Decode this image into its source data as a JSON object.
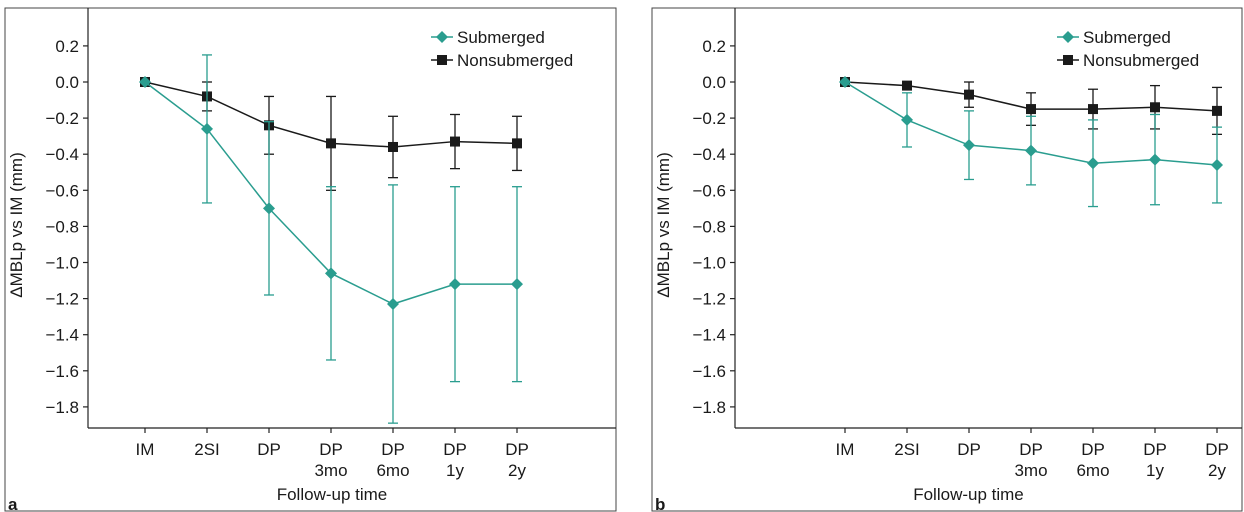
{
  "chart_data": [
    {
      "panel_label": "a",
      "type": "line",
      "xlabel": "Follow-up time",
      "ylabel": "ΔMBLp vs IM (mm)",
      "categories": [
        [
          "IM"
        ],
        [
          "2SI"
        ],
        [
          "DP"
        ],
        [
          "DP",
          "3mo"
        ],
        [
          "DP",
          "6mo"
        ],
        [
          "DP",
          "1y"
        ],
        [
          "DP",
          "2y"
        ]
      ],
      "ylim": [
        -1.93,
        0.25
      ],
      "yticks": [
        0.2,
        0.0,
        -0.2,
        -0.4,
        -0.6,
        -0.8,
        -1.0,
        -1.2,
        -1.4,
        -1.6,
        -1.8
      ],
      "ytick_labels": [
        "0.2",
        "0.0",
        "−0.2",
        "−0.4",
        "−0.6",
        "−0.8",
        "−1.0",
        "−1.2",
        "−1.4",
        "−1.6",
        "−1.8"
      ],
      "legend_position": "top-right",
      "series": [
        {
          "name": "Submerged",
          "color": "#2a9d8f",
          "marker": "diamond",
          "values": [
            0.0,
            -0.26,
            -0.7,
            -1.06,
            -1.23,
            -1.12,
            -1.12
          ],
          "error": [
            0,
            0.41,
            0.48,
            0.48,
            0.66,
            0.54,
            0.54
          ]
        },
        {
          "name": "Nonsubmerged",
          "color": "#1a1a1a",
          "marker": "square",
          "values": [
            0.0,
            -0.08,
            -0.24,
            -0.34,
            -0.36,
            -0.33,
            -0.34
          ],
          "error": [
            0,
            0.08,
            0.16,
            0.26,
            0.17,
            0.15,
            0.15
          ]
        }
      ]
    },
    {
      "panel_label": "b",
      "type": "line",
      "xlabel": "Follow-up time",
      "ylabel": "ΔMBLp vs IM (mm)",
      "categories": [
        [
          "IM"
        ],
        [
          "2SI"
        ],
        [
          "DP"
        ],
        [
          "DP",
          "3mo"
        ],
        [
          "DP",
          "6mo"
        ],
        [
          "DP",
          "1y"
        ],
        [
          "DP",
          "2y"
        ]
      ],
      "ylim": [
        -1.93,
        0.25
      ],
      "yticks": [
        0.2,
        0.0,
        -0.2,
        -0.4,
        -0.6,
        -0.8,
        -1.0,
        -1.2,
        -1.4,
        -1.6,
        -1.8
      ],
      "ytick_labels": [
        "0.2",
        "0.0",
        "−0.2",
        "−0.4",
        "−0.6",
        "−0.8",
        "−1.0",
        "−1.2",
        "−1.4",
        "−1.6",
        "−1.8"
      ],
      "legend_position": "top-right",
      "series": [
        {
          "name": "Submerged",
          "color": "#2a9d8f",
          "marker": "diamond",
          "values": [
            0.0,
            -0.21,
            -0.35,
            -0.38,
            -0.45,
            -0.43,
            -0.46
          ],
          "error": [
            0,
            0.15,
            0.19,
            0.19,
            0.24,
            0.25,
            0.21
          ]
        },
        {
          "name": "Nonsubmerged",
          "color": "#1a1a1a",
          "marker": "square",
          "values": [
            0.0,
            -0.02,
            -0.07,
            -0.15,
            -0.15,
            -0.14,
            -0.16
          ],
          "error": [
            0,
            0.02,
            0.07,
            0.09,
            0.11,
            0.12,
            0.13
          ]
        }
      ]
    }
  ]
}
